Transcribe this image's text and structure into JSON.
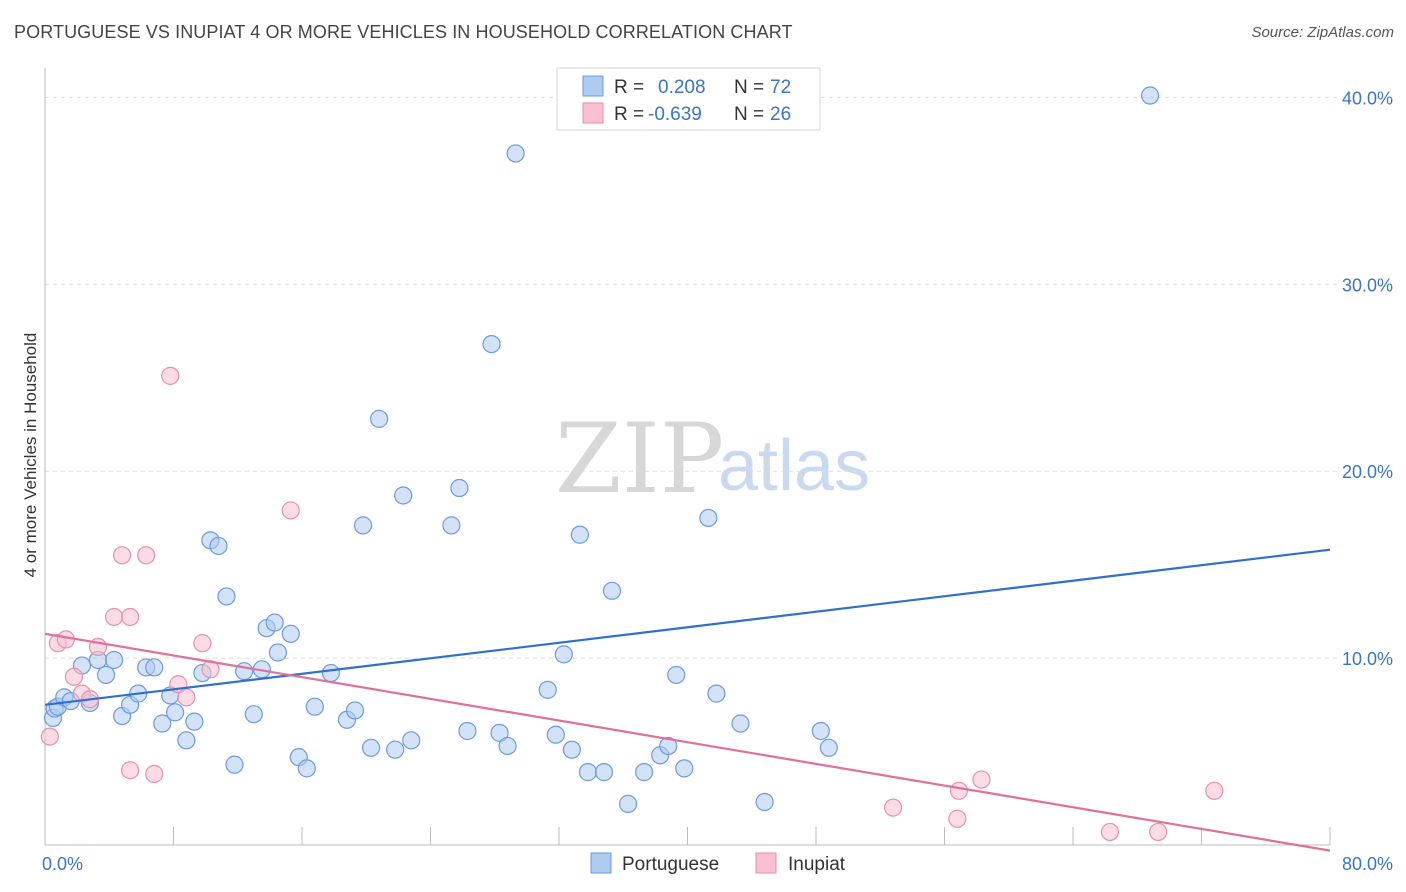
{
  "title": "PORTUGUESE VS INUPIAT 4 OR MORE VEHICLES IN HOUSEHOLD CORRELATION CHART",
  "source": "Source: ZipAtlas.com",
  "watermark": {
    "zip": "ZIP",
    "atlas": "atlas"
  },
  "legend": {
    "rows": [
      {
        "r_label": "R =",
        "r_value": "0.208",
        "n_label": "N =",
        "n_value": "72",
        "color": "#aecbf0",
        "stroke": "#6a9be0"
      },
      {
        "r_label": "R =",
        "r_value": "-0.639",
        "n_label": "N =",
        "n_value": "26",
        "color": "#f8c0d2",
        "stroke": "#e88fab"
      }
    ]
  },
  "bottom_legend": [
    {
      "label": "Portuguese",
      "color": "#aecbf0",
      "stroke": "#6a9be0"
    },
    {
      "label": "Inupiat",
      "color": "#f8c0d2",
      "stroke": "#e88fab"
    }
  ],
  "chart_data": {
    "type": "scatter",
    "title": "PORTUGUESE VS INUPIAT 4 OR MORE VEHICLES IN HOUSEHOLD CORRELATION CHART",
    "xlabel": "",
    "ylabel": "4 or more Vehicles in Household",
    "xlim": [
      0,
      80
    ],
    "ylim": [
      0,
      42
    ],
    "x_tick_labels": [
      "0.0%",
      "80.0%"
    ],
    "y_ticks": [
      10,
      20,
      30,
      40
    ],
    "y_tick_labels": [
      "10.0%",
      "20.0%",
      "30.0%",
      "40.0%"
    ],
    "grid": true,
    "legend_position": "top-center",
    "series": [
      {
        "name": "Portuguese",
        "color": "#6a9be0",
        "fill": "#aecbf0",
        "trend": {
          "x0": 0,
          "y0": 7.5,
          "x1": 80,
          "y1": 15.8,
          "color": "#2f6fd0"
        },
        "points": [
          [
            0.5,
            6.8
          ],
          [
            0.6,
            7.3
          ],
          [
            0.8,
            7.4
          ],
          [
            1.2,
            7.9
          ],
          [
            1.6,
            7.7
          ],
          [
            2.3,
            9.6
          ],
          [
            2.8,
            7.6
          ],
          [
            3.3,
            9.9
          ],
          [
            3.8,
            9.1
          ],
          [
            4.3,
            9.9
          ],
          [
            4.8,
            6.9
          ],
          [
            5.3,
            7.5
          ],
          [
            5.8,
            8.1
          ],
          [
            6.3,
            9.5
          ],
          [
            6.8,
            9.5
          ],
          [
            7.3,
            6.5
          ],
          [
            7.8,
            8.0
          ],
          [
            8.1,
            7.1
          ],
          [
            8.8,
            5.6
          ],
          [
            9.3,
            6.6
          ],
          [
            9.8,
            9.2
          ],
          [
            10.3,
            16.3
          ],
          [
            10.8,
            16.0
          ],
          [
            11.3,
            13.3
          ],
          [
            11.8,
            4.3
          ],
          [
            12.4,
            9.3
          ],
          [
            13.0,
            7.0
          ],
          [
            13.5,
            9.4
          ],
          [
            13.8,
            11.6
          ],
          [
            14.3,
            11.9
          ],
          [
            14.5,
            10.3
          ],
          [
            15.3,
            11.3
          ],
          [
            15.8,
            4.7
          ],
          [
            16.3,
            4.1
          ],
          [
            16.8,
            7.4
          ],
          [
            17.8,
            9.2
          ],
          [
            18.8,
            6.7
          ],
          [
            19.3,
            7.2
          ],
          [
            19.8,
            17.1
          ],
          [
            20.3,
            5.2
          ],
          [
            20.8,
            22.8
          ],
          [
            21.8,
            5.1
          ],
          [
            22.3,
            18.7
          ],
          [
            22.8,
            5.6
          ],
          [
            25.3,
            17.1
          ],
          [
            25.8,
            19.1
          ],
          [
            26.3,
            6.1
          ],
          [
            27.8,
            26.8
          ],
          [
            28.3,
            6.0
          ],
          [
            28.8,
            5.3
          ],
          [
            29.3,
            37.0
          ],
          [
            31.3,
            8.3
          ],
          [
            31.8,
            5.9
          ],
          [
            32.3,
            10.2
          ],
          [
            32.8,
            5.1
          ],
          [
            33.3,
            16.6
          ],
          [
            33.8,
            3.9
          ],
          [
            34.8,
            3.9
          ],
          [
            35.3,
            13.6
          ],
          [
            36.3,
            2.2
          ],
          [
            37.3,
            3.9
          ],
          [
            38.3,
            4.8
          ],
          [
            38.8,
            5.3
          ],
          [
            39.3,
            9.1
          ],
          [
            39.8,
            4.1
          ],
          [
            41.3,
            17.5
          ],
          [
            41.8,
            8.1
          ],
          [
            43.3,
            6.5
          ],
          [
            44.8,
            2.3
          ],
          [
            48.8,
            5.2
          ],
          [
            48.3,
            6.1
          ],
          [
            68.8,
            40.1
          ]
        ]
      },
      {
        "name": "Inupiat",
        "color": "#e88fab",
        "fill": "#f8c0d2",
        "trend": {
          "x0": 0,
          "y0": 11.3,
          "x1": 80,
          "y1": -0.3,
          "color": "#e0709a"
        },
        "points": [
          [
            0.3,
            5.8
          ],
          [
            0.8,
            10.8
          ],
          [
            1.3,
            11.0
          ],
          [
            1.8,
            9.0
          ],
          [
            2.3,
            8.1
          ],
          [
            2.8,
            7.8
          ],
          [
            3.3,
            10.6
          ],
          [
            4.3,
            12.2
          ],
          [
            5.3,
            12.2
          ],
          [
            4.8,
            15.5
          ],
          [
            6.3,
            15.5
          ],
          [
            5.3,
            4.0
          ],
          [
            6.8,
            3.8
          ],
          [
            7.8,
            25.1
          ],
          [
            8.3,
            8.6
          ],
          [
            8.8,
            7.9
          ],
          [
            9.8,
            10.8
          ],
          [
            10.3,
            9.4
          ],
          [
            15.3,
            17.9
          ],
          [
            52.8,
            2.0
          ],
          [
            56.8,
            1.4
          ],
          [
            56.9,
            2.9
          ],
          [
            58.3,
            3.5
          ],
          [
            66.3,
            0.7
          ],
          [
            69.3,
            0.7
          ],
          [
            72.8,
            2.9
          ]
        ]
      }
    ]
  }
}
